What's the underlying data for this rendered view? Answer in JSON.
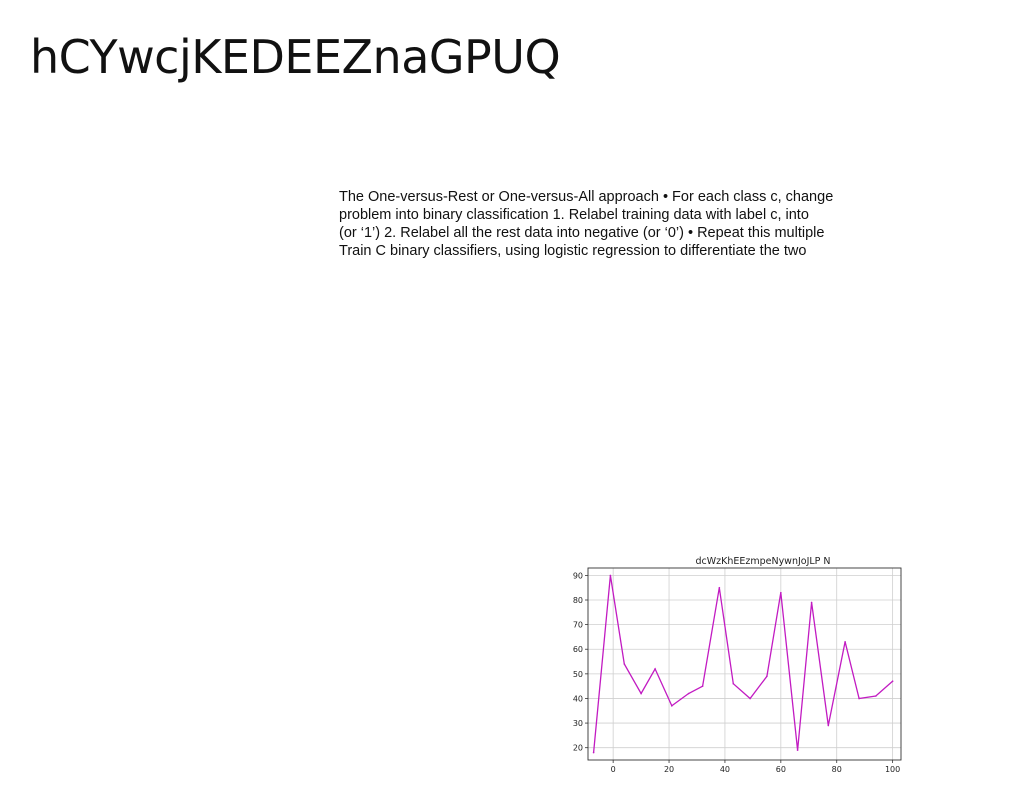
{
  "slide": {
    "title": "hCYwcjKEDEEZnaGPUQ",
    "body_lines": [
      "The One-versus-Rest or One-versus-All approach • For each class c, change",
      "problem into binary classification 1. Relabel training data with label c, into",
      "(or ‘1’) 2. Relabel all the rest data into negative (or ‘0’) • Repeat this multiple",
      "Train C binary classifiers, using logistic regression to differentiate the two"
    ]
  },
  "chart_data": {
    "type": "line",
    "title": "dcWzKhEEzmpeNywnJoJLP N",
    "xlabel": "",
    "ylabel": "",
    "xlim": [
      -9,
      103
    ],
    "ylim": [
      15,
      93
    ],
    "xticks": [
      0,
      20,
      40,
      60,
      80,
      100
    ],
    "yticks": [
      20,
      30,
      40,
      50,
      60,
      70,
      80,
      90
    ],
    "grid": true,
    "color": "#c21bc2",
    "series": [
      {
        "x": [
          -7,
          -1,
          4,
          10,
          15,
          21,
          27,
          32,
          38,
          43,
          49,
          55,
          60,
          66,
          71,
          77,
          83,
          88,
          94,
          100
        ],
        "y": [
          18,
          90,
          54,
          42,
          52,
          37,
          42,
          45,
          85,
          46,
          40,
          49,
          83,
          19,
          79,
          29,
          63,
          40,
          41,
          47
        ]
      }
    ]
  }
}
